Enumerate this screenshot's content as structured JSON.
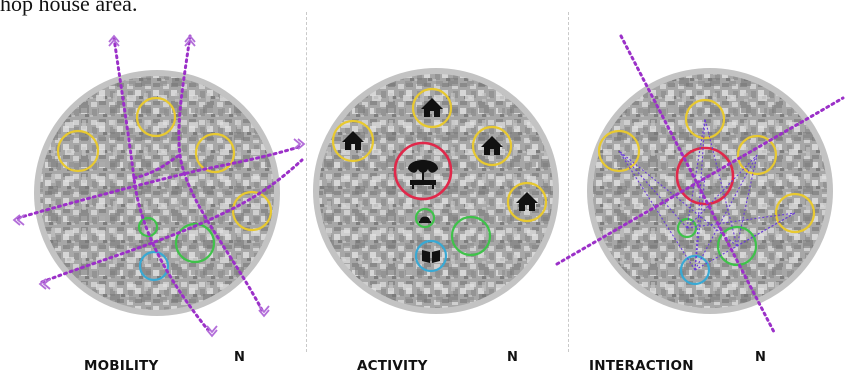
{
  "caption_fragment": "hop house area.",
  "panels": [
    {
      "label": "MOBILITY",
      "north": "N"
    },
    {
      "label": "ACTIVITY",
      "north": "N"
    },
    {
      "label": "INTERACTION",
      "north": "N"
    }
  ],
  "colors": {
    "disk": "#a9a9a9",
    "rim": "#c3c3c3",
    "path": "#9b30c8",
    "house_zone": "#e8c930",
    "market": "#e0284a",
    "green_zone": "#3fc24a",
    "blue_zone": "#39a9d4"
  },
  "icons": [
    "house-icon",
    "market-stall-icon",
    "worship-icon",
    "book-icon",
    "double-chevron-icon"
  ]
}
